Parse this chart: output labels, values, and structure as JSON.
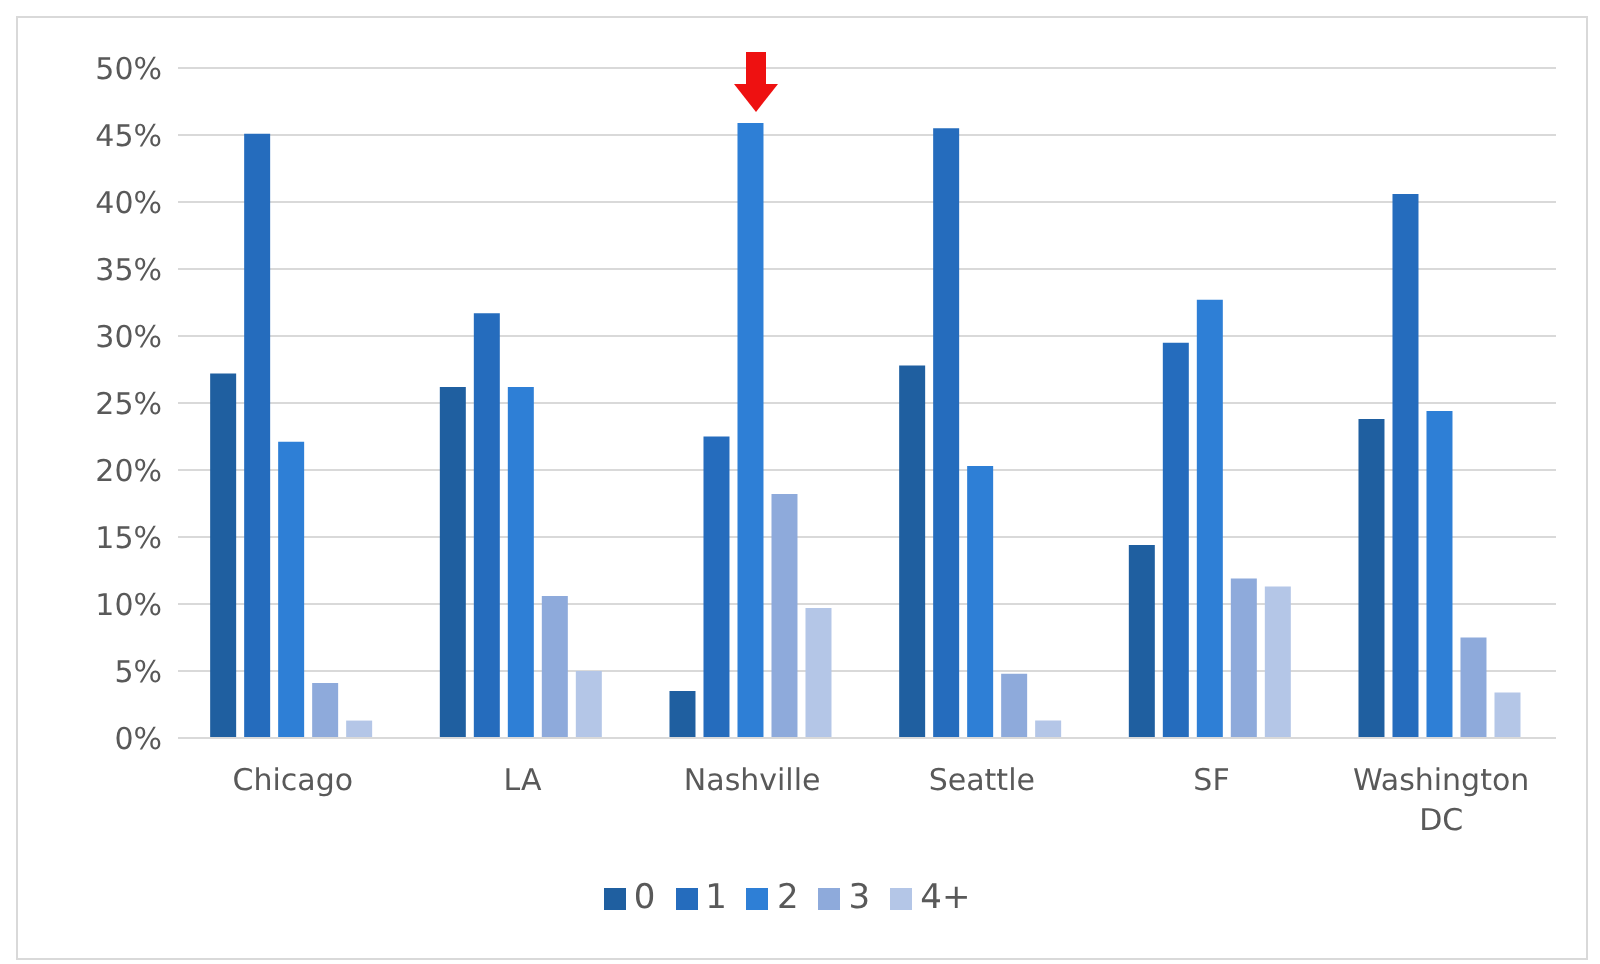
{
  "chart_data": {
    "type": "bar",
    "categories": [
      "Chicago",
      "LA",
      "Nashville",
      "Seattle",
      "SF",
      "Washington DC"
    ],
    "series": [
      {
        "name": "0",
        "color": "#1f5fa0",
        "values": [
          27.2,
          26.2,
          3.5,
          27.8,
          14.4,
          23.8
        ]
      },
      {
        "name": "1",
        "color": "#256cbd",
        "values": [
          45.1,
          31.7,
          22.5,
          45.5,
          29.5,
          40.6
        ]
      },
      {
        "name": "2",
        "color": "#2e7fd6",
        "values": [
          22.1,
          26.2,
          45.9,
          20.3,
          32.7,
          24.4
        ]
      },
      {
        "name": "3",
        "color": "#8eaadb",
        "values": [
          4.1,
          10.6,
          18.2,
          4.8,
          11.9,
          7.5
        ]
      },
      {
        "name": "4+",
        "color": "#b4c6e7",
        "values": [
          1.3,
          5.0,
          9.7,
          1.3,
          11.3,
          3.4
        ]
      }
    ],
    "ylim": [
      0,
      50
    ],
    "yticks": [
      {
        "value": 0,
        "label": "0%"
      },
      {
        "value": 5,
        "label": "5%"
      },
      {
        "value": 10,
        "label": "10%"
      },
      {
        "value": 15,
        "label": "15%"
      },
      {
        "value": 20,
        "label": "20%"
      },
      {
        "value": 25,
        "label": "25%"
      },
      {
        "value": 30,
        "label": "30%"
      },
      {
        "value": 35,
        "label": "35%"
      },
      {
        "value": 40,
        "label": "40%"
      },
      {
        "value": 45,
        "label": "45%"
      },
      {
        "value": 50,
        "label": "50%"
      }
    ],
    "grid": "y",
    "legend": "bottom"
  }
}
